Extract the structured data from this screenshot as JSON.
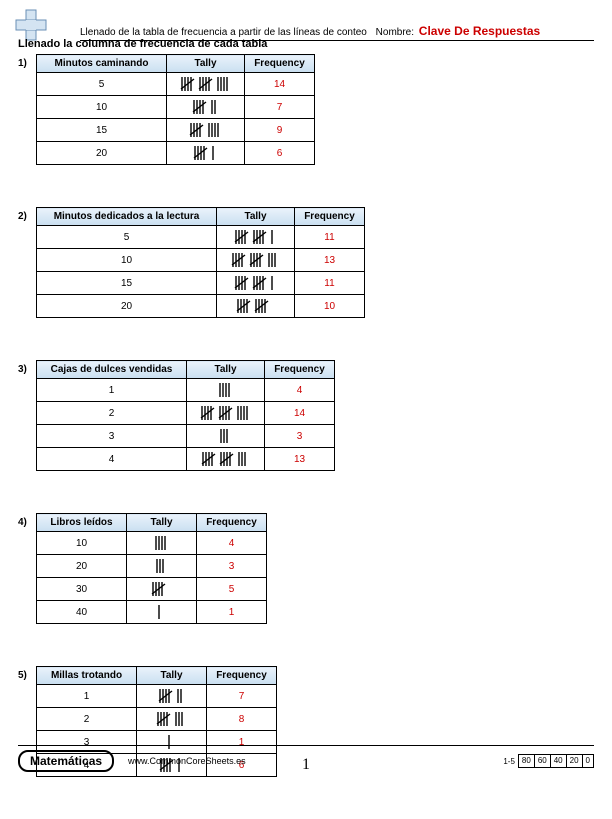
{
  "header": {
    "title": "Llenado de la tabla de frecuencia a partir de las líneas de conteo",
    "name_label": "Nombre:",
    "answer_key": "Clave De Respuestas"
  },
  "instruction": "Llenado la columna de frecuencia de cada tabla",
  "columns": {
    "tally": "Tally",
    "frequency": "Frequency"
  },
  "problems": [
    {
      "num": "1)",
      "col1_header": "Minutos caminando",
      "col1_width": 130,
      "tally_width": 78,
      "freq_width": 70,
      "rows": [
        {
          "label": "5",
          "tally": 14,
          "freq": "14"
        },
        {
          "label": "10",
          "tally": 7,
          "freq": "7"
        },
        {
          "label": "15",
          "tally": 9,
          "freq": "9"
        },
        {
          "label": "20",
          "tally": 6,
          "freq": "6"
        }
      ]
    },
    {
      "num": "2)",
      "col1_header": "Minutos dedicados a la lectura",
      "col1_width": 180,
      "tally_width": 78,
      "freq_width": 70,
      "rows": [
        {
          "label": "5",
          "tally": 11,
          "freq": "11"
        },
        {
          "label": "10",
          "tally": 13,
          "freq": "13"
        },
        {
          "label": "15",
          "tally": 11,
          "freq": "11"
        },
        {
          "label": "20",
          "tally": 10,
          "freq": "10"
        }
      ]
    },
    {
      "num": "3)",
      "col1_header": "Cajas de dulces vendidas",
      "col1_width": 150,
      "tally_width": 78,
      "freq_width": 70,
      "rows": [
        {
          "label": "1",
          "tally": 4,
          "freq": "4"
        },
        {
          "label": "2",
          "tally": 14,
          "freq": "14"
        },
        {
          "label": "3",
          "tally": 3,
          "freq": "3"
        },
        {
          "label": "4",
          "tally": 13,
          "freq": "13"
        }
      ]
    },
    {
      "num": "4)",
      "col1_header": "Libros leídos",
      "col1_width": 90,
      "tally_width": 70,
      "freq_width": 70,
      "rows": [
        {
          "label": "10",
          "tally": 4,
          "freq": "4"
        },
        {
          "label": "20",
          "tally": 3,
          "freq": "3"
        },
        {
          "label": "30",
          "tally": 5,
          "freq": "5"
        },
        {
          "label": "40",
          "tally": 1,
          "freq": "1"
        }
      ]
    },
    {
      "num": "5)",
      "col1_header": "Millas trotando",
      "col1_width": 100,
      "tally_width": 70,
      "freq_width": 70,
      "rows": [
        {
          "label": "1",
          "tally": 7,
          "freq": "7"
        },
        {
          "label": "2",
          "tally": 8,
          "freq": "8"
        },
        {
          "label": "3",
          "tally": 1,
          "freq": "1"
        },
        {
          "label": "4",
          "tally": 6,
          "freq": "6"
        }
      ]
    }
  ],
  "footer": {
    "subject": "Matemáticas",
    "url": "www.CommonCoreSheets.es",
    "page": "1",
    "score_label": "1-5",
    "scores": [
      "80",
      "60",
      "40",
      "20",
      "0"
    ]
  },
  "style": {
    "answer_color": "#cc0000",
    "header_grad_top": "#eaf2fb",
    "header_grad_bottom": "#c9dff0",
    "logo_stroke": "#6a8fb5",
    "logo_fill": "#d4e4f2"
  }
}
